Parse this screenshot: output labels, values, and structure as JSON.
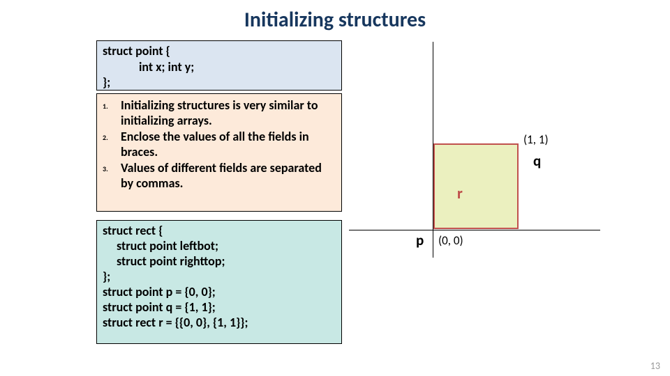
{
  "title": "Initializing structures",
  "code1": {
    "l1": "struct point {",
    "l2": "int x; int y;",
    "l3": "};"
  },
  "bullets": [
    {
      "num": "1.",
      "txt": "Initializing structures is very similar to initializing arrays."
    },
    {
      "num": "2.",
      "txt": "Enclose the values of all the fields in braces."
    },
    {
      "num": "3.",
      "txt": "Values of different fields are separated by commas."
    }
  ],
  "code2": {
    "l1": "struct rect {",
    "l2": "struct point leftbot;",
    "l3": "struct point righttop;",
    "l4": "};",
    "l5": "struct point p = {0, 0};",
    "l6": "struct point q = {1, 1};",
    "l7": "struct rect r = {{0, 0}, {1, 1}};"
  },
  "diagram": {
    "p": "p",
    "q": "q",
    "r": "r",
    "origin": "(0, 0)",
    "topright": "(1, 1)",
    "rect_fill": "#ebf0bf",
    "rect_border": "#c0504d",
    "r_color": "#be4b48"
  },
  "page_number": "13"
}
